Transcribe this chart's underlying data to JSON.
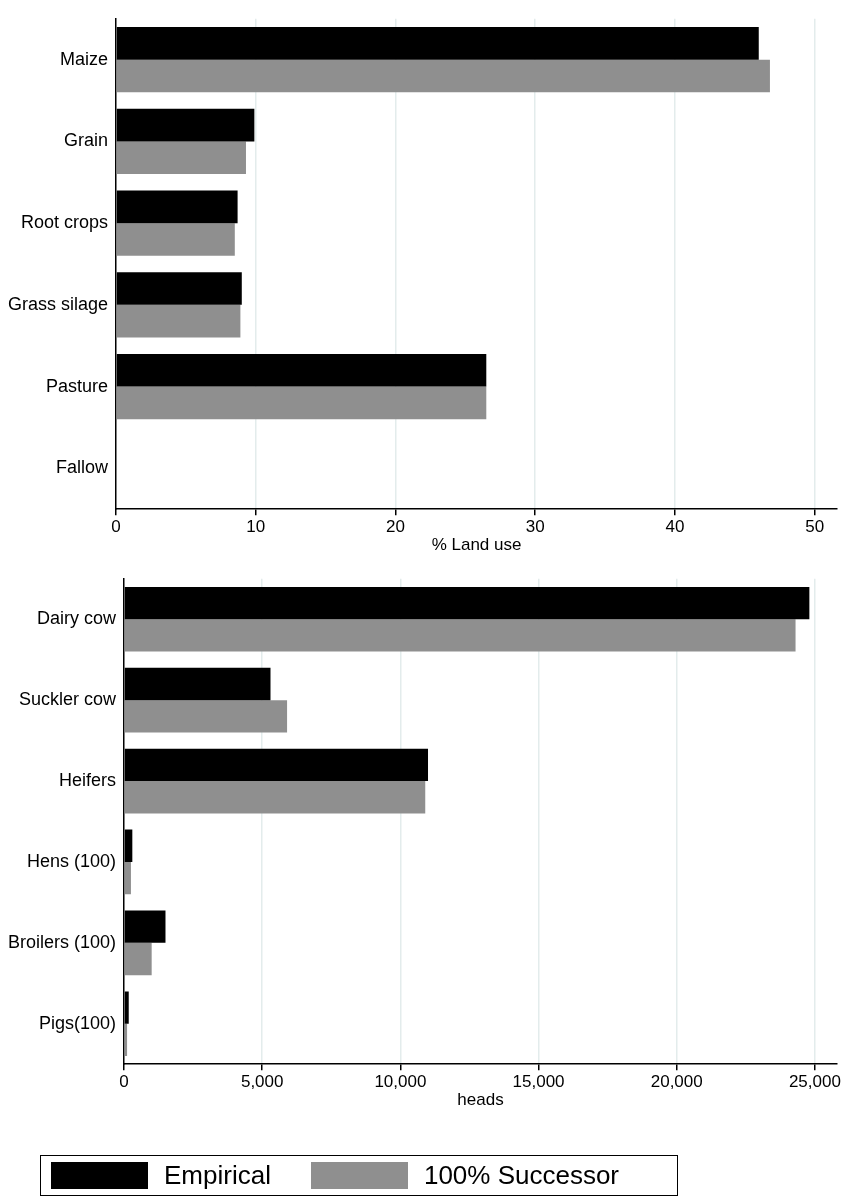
{
  "chart_data": [
    {
      "type": "bar",
      "orientation": "horizontal",
      "xlabel": "% Land use",
      "categories": [
        "Maize",
        "Grain",
        "Root crops",
        "Grass silage",
        "Pasture",
        "Fallow"
      ],
      "series": [
        {
          "color": "#000000",
          "values": [
            46.0,
            9.9,
            8.7,
            9.0,
            26.5,
            null
          ]
        },
        {
          "color": "#8f8f8f",
          "values": [
            46.8,
            9.3,
            8.5,
            8.9,
            26.5,
            null
          ]
        }
      ],
      "xlim": [
        0,
        51.6
      ],
      "xticks": [
        0,
        10,
        20,
        30,
        40,
        50
      ],
      "grid": "x",
      "legend": false
    },
    {
      "type": "bar",
      "orientation": "horizontal",
      "xlabel": "heads",
      "categories": [
        "Dairy cow",
        "Suckler cow",
        "Heifers",
        "Hens (100)",
        "Broilers (100)",
        "Pigs(100)"
      ],
      "series": [
        {
          "name": "Empirical",
          "color": "#000000",
          "values": [
            24800,
            5300,
            11000,
            300,
            1500,
            170
          ]
        },
        {
          "name": "100% Successor",
          "color": "#8f8f8f",
          "values": [
            24300,
            5900,
            10900,
            250,
            1000,
            110
          ]
        }
      ],
      "xlim": [
        0,
        25800
      ],
      "xticks": [
        {
          "value": 0,
          "label": "0"
        },
        {
          "value": 5000,
          "label": "5,000"
        },
        {
          "value": 10000,
          "label": "10,000"
        },
        {
          "value": 15000,
          "label": "15,000"
        },
        {
          "value": 20000,
          "label": "20,000"
        },
        {
          "value": 25000,
          "label": "25,000"
        }
      ],
      "grid": "x",
      "legend": "bottom"
    }
  ]
}
